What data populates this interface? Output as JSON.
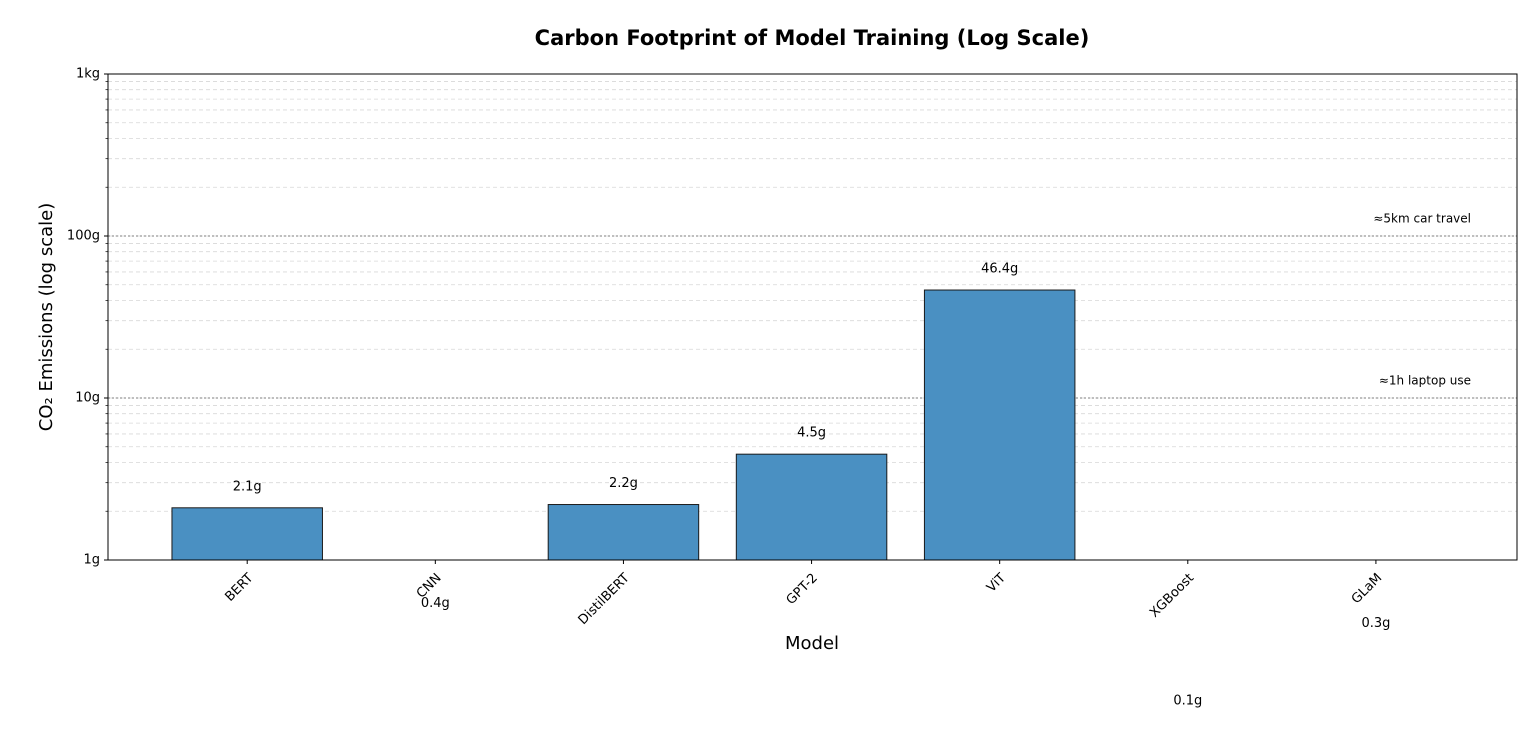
{
  "chart_data": {
    "type": "bar",
    "title": "Carbon Footprint of Model Training (Log Scale)",
    "x_label": "Model",
    "y_label": "CO₂ Emissions (log scale)",
    "categories": [
      "BERT",
      "CNN",
      "DistilBERT",
      "GPT-2",
      "ViT",
      "XGBoost",
      "GLaM"
    ],
    "values": [
      2.1,
      0.4,
      2.2,
      4.5,
      46.4,
      0.1,
      0.3
    ],
    "value_labels": [
      "2.1g",
      "0.4g",
      "2.2g",
      "4.5g",
      "46.4g",
      "0.1g",
      "0.3g"
    ],
    "color": "#4a90c2",
    "edge_color": "#1a1a1a",
    "log_scale": true,
    "ylim": [
      1,
      1000
    ],
    "yticks": [
      {
        "value": 1,
        "label": "1g"
      },
      {
        "value": 10,
        "label": "10g"
      },
      {
        "value": 100,
        "label": "100g"
      },
      {
        "value": 1000,
        "label": "1kg"
      }
    ],
    "yminorticks": [
      2,
      3,
      4,
      5,
      6,
      7,
      8,
      9,
      20,
      30,
      40,
      50,
      60,
      70,
      80,
      90,
      200,
      300,
      400,
      500,
      600,
      700,
      800,
      900
    ],
    "grid": true,
    "reference_lines": [
      {
        "value": 10,
        "label": "≈1h laptop use"
      },
      {
        "value": 100,
        "label": "≈5km car travel"
      }
    ]
  }
}
